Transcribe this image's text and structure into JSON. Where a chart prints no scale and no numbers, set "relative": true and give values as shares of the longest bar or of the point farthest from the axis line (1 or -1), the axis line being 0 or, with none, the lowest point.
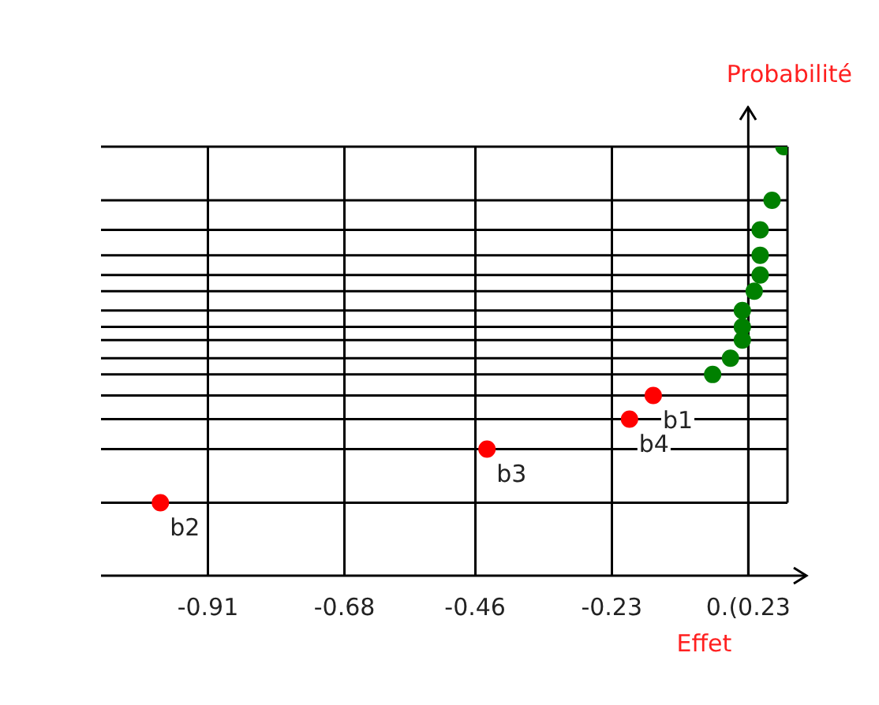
{
  "chart_data": {
    "type": "scatter",
    "xlabel": "Effet",
    "ylabel": "Probabilité",
    "relative": true,
    "x": [
      0.06,
      0.04,
      0.02,
      0.02,
      0.02,
      0.01,
      -0.01,
      -0.01,
      -0.01,
      -0.03,
      -0.06,
      -0.16,
      -0.2,
      -0.44,
      -0.99
    ],
    "values": [
      1,
      0.875,
      0.806,
      0.747,
      0.701,
      0.663,
      0.618,
      0.58,
      0.549,
      0.507,
      0.469,
      0.42,
      0.365,
      0.295,
      0.17
    ],
    "colors": [
      "#008000",
      "#008000",
      "#008000",
      "#008000",
      "#008000",
      "#008000",
      "#008000",
      "#008000",
      "#008000",
      "#008000",
      "#008000",
      "#ff0000",
      "#ff0000",
      "#ff0000",
      "#ff0000"
    ],
    "xlim": [
      -1.09,
      0.066
    ],
    "xticks": [
      -0.91,
      -0.68,
      -0.46,
      -0.23,
      {
        "value": 0,
        "label": "0.(0.23"
      }
    ],
    "grid": true,
    "marker": "circle",
    "annotations": [
      {
        "text": "b1",
        "x": -0.16,
        "y": 0.42
      },
      {
        "text": "b4",
        "x": -0.2,
        "y": 0.365
      },
      {
        "text": "b3",
        "x": -0.44,
        "y": 0.295
      },
      {
        "text": "b2",
        "x": -0.99,
        "y": 0.17
      }
    ]
  }
}
